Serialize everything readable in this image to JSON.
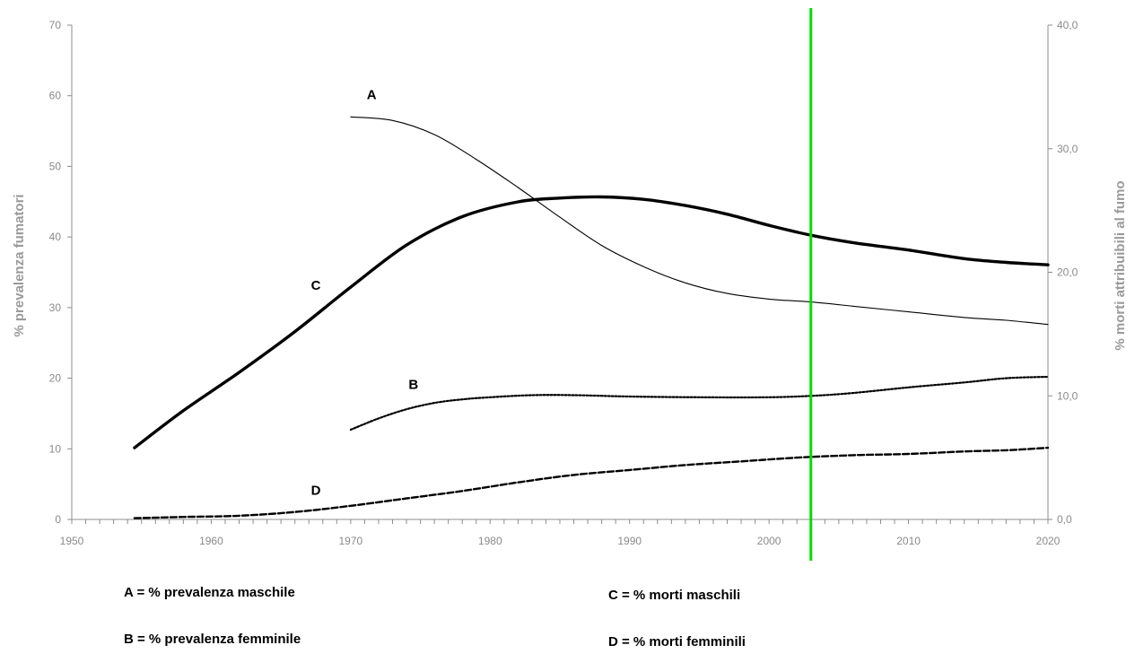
{
  "chart_data": {
    "type": "line",
    "x_axis": {
      "range": [
        1950,
        2020
      ],
      "tick_labels": [
        "1950",
        "1960",
        "1970",
        "1980",
        "1990",
        "2000",
        "2010",
        "2020"
      ]
    },
    "y_left": {
      "label": "% prevalenza fumatori",
      "range": [
        0,
        70
      ],
      "tick_labels": [
        "0",
        "10",
        "20",
        "30",
        "40",
        "50",
        "60",
        "70"
      ]
    },
    "y_right": {
      "label": "% morti attribuibili al fumo",
      "range": [
        0,
        40
      ],
      "tick_labels": [
        "0,0",
        "10,0",
        "20,0",
        "30,0",
        "40,0"
      ]
    },
    "reference_line": {
      "x": 2003,
      "color": "#00dd00"
    },
    "grid": false,
    "series": [
      {
        "name": "A",
        "axis": "left",
        "style": "thin",
        "x": [
          1970,
          1973,
          1976,
          1979,
          1982,
          1985,
          1988,
          1991,
          1994,
          1997,
          2000,
          2003,
          2006,
          2010,
          2014,
          2017,
          2020
        ],
        "values": [
          57.0,
          56.5,
          54.5,
          51.0,
          47.0,
          42.8,
          38.8,
          35.8,
          33.5,
          32.0,
          31.2,
          30.8,
          30.2,
          29.4,
          28.6,
          28.2,
          27.6
        ]
      },
      {
        "name": "B",
        "axis": "left",
        "style": "dotted",
        "x": [
          1970,
          1972,
          1974,
          1976,
          1978,
          1980,
          1983,
          1986,
          1990,
          1995,
          2000,
          2003,
          2006,
          2010,
          2014,
          2017,
          2020
        ],
        "values": [
          12.7,
          14.3,
          15.6,
          16.5,
          17.0,
          17.3,
          17.6,
          17.6,
          17.4,
          17.3,
          17.3,
          17.5,
          17.9,
          18.7,
          19.4,
          20.0,
          20.2
        ]
      },
      {
        "name": "C",
        "axis": "right",
        "style": "thick",
        "x": [
          1954.5,
          1958,
          1962,
          1966,
          1970,
          1974,
          1978,
          1982,
          1985,
          1988,
          1991,
          1994,
          1997,
          2000,
          2003,
          2006,
          2010,
          2014,
          2017,
          2020
        ],
        "values": [
          5.8,
          8.8,
          11.9,
          15.2,
          18.8,
          22.2,
          24.5,
          25.7,
          26.0,
          26.1,
          25.9,
          25.4,
          24.7,
          23.8,
          23.0,
          22.4,
          21.8,
          21.1,
          20.8,
          20.6
        ]
      },
      {
        "name": "D",
        "axis": "right",
        "style": "dashed",
        "x": [
          1954.5,
          1958,
          1962,
          1966,
          1970,
          1974,
          1978,
          1982,
          1986,
          1990,
          1994,
          1998,
          2002,
          2006,
          2010,
          2014,
          2017,
          2020
        ],
        "values": [
          0.1,
          0.2,
          0.3,
          0.6,
          1.1,
          1.7,
          2.3,
          3.0,
          3.6,
          4.0,
          4.4,
          4.7,
          5.0,
          5.2,
          5.3,
          5.5,
          5.6,
          5.8
        ]
      }
    ],
    "curve_labels": [
      {
        "text": "A",
        "x": 1971.5,
        "y": 59.5,
        "axis": "left"
      },
      {
        "text": "B",
        "x": 1974.5,
        "y": 18.5,
        "axis": "left"
      },
      {
        "text": "C",
        "x": 1967.5,
        "y": 18.6,
        "axis": "right"
      },
      {
        "text": "D",
        "x": 1967.5,
        "y": 2.0,
        "axis": "right"
      }
    ],
    "legend": [
      "A = % prevalenza maschile",
      "B = % prevalenza femminile",
      "C = % morti maschili",
      "D = % morti femminili"
    ]
  }
}
